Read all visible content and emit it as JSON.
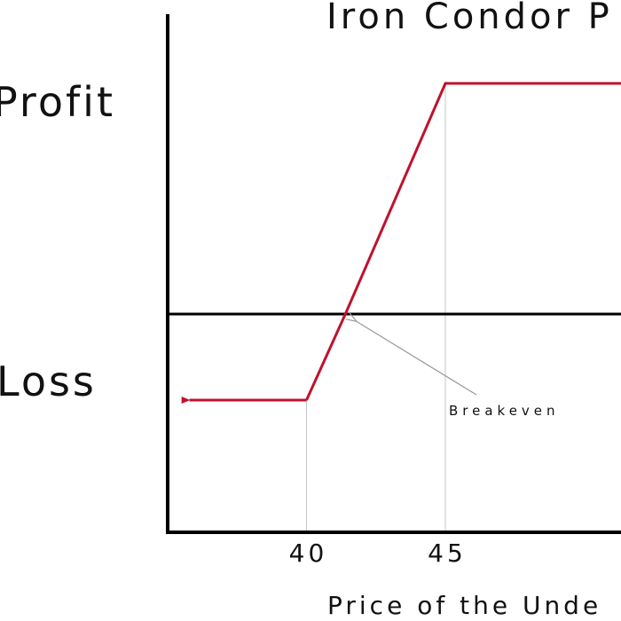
{
  "chart_data": {
    "type": "line",
    "title": "Iron Condor P",
    "xlabel": "Price of the Unde",
    "profit_label": "Profit",
    "loss_label": "Loss",
    "x_ticks": [
      {
        "value": 40,
        "label": "40"
      },
      {
        "value": 45,
        "label": "45"
      }
    ],
    "xlim": [
      35,
      57
    ],
    "ylim": [
      -3,
      3
    ],
    "series": [
      {
        "points": [
          {
            "x": 40,
            "y": -1
          },
          {
            "x": 41.4,
            "y": 0
          },
          {
            "x": 45,
            "y": 2.7
          },
          {
            "x": 57,
            "y": 2.7
          }
        ],
        "left_arrow_to_x": 35.5
      }
    ],
    "annotation": {
      "text": "Breakeven",
      "point": {
        "x": 41.4,
        "y": 0
      }
    },
    "grid": false,
    "colors": {
      "payoff": "#c0112c",
      "axis": "#000000",
      "guide": "#c6c6c6",
      "annotation_arrow": "#9a9a9a"
    }
  }
}
